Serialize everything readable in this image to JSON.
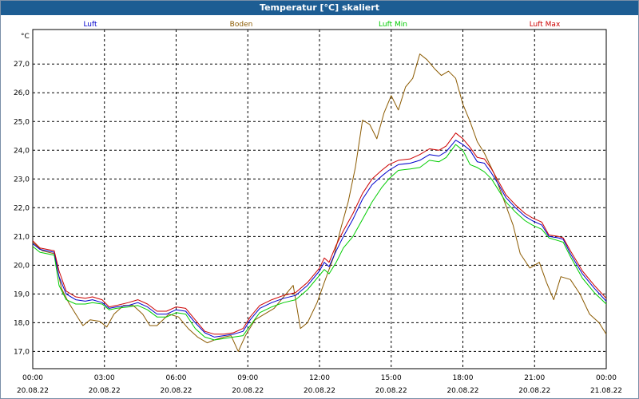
{
  "window": {
    "title": "Temperatur [°C] skaliert"
  },
  "chart_data": {
    "type": "line",
    "title": "Temperatur [°C] skaliert",
    "ylabel": "°C",
    "xlabel": "",
    "ylim": [
      16.4,
      28.2
    ],
    "y_ticks": [
      17.0,
      18.0,
      19.0,
      20.0,
      21.0,
      22.0,
      23.0,
      24.0,
      25.0,
      26.0,
      27.0
    ],
    "y_tick_labels": [
      "17,0",
      "18,0",
      "19,0",
      "20,0",
      "21,0",
      "22,0",
      "23,0",
      "24,0",
      "25,0",
      "26,0",
      "27,0"
    ],
    "xlim": [
      0,
      24
    ],
    "x_ticks": [
      {
        "hour": 0,
        "time": "00:00",
        "date": "20.08.22"
      },
      {
        "hour": 3,
        "time": "03:00",
        "date": "20.08.22"
      },
      {
        "hour": 6,
        "time": "06:00",
        "date": "20.08.22"
      },
      {
        "hour": 9,
        "time": "09:00",
        "date": "20.08.22"
      },
      {
        "hour": 12,
        "time": "12:00",
        "date": "20.08.22"
      },
      {
        "hour": 15,
        "time": "15:00",
        "date": "20.08.22"
      },
      {
        "hour": 18,
        "time": "18:00",
        "date": "20.08.22"
      },
      {
        "hour": 21,
        "time": "21:00",
        "date": "20.08.22"
      },
      {
        "hour": 24,
        "time": "00:00",
        "date": "21.08.22"
      }
    ],
    "grid": true,
    "series": [
      {
        "name": "Luft",
        "color": "#0000cc",
        "points": [
          [
            0,
            20.75
          ],
          [
            0.3,
            20.55
          ],
          [
            0.9,
            20.45
          ],
          [
            1.1,
            19.6
          ],
          [
            1.4,
            19.0
          ],
          [
            1.8,
            18.8
          ],
          [
            2.2,
            18.75
          ],
          [
            2.5,
            18.8
          ],
          [
            2.9,
            18.7
          ],
          [
            3.2,
            18.5
          ],
          [
            3.5,
            18.55
          ],
          [
            4.0,
            18.6
          ],
          [
            4.4,
            18.7
          ],
          [
            4.8,
            18.55
          ],
          [
            5.2,
            18.3
          ],
          [
            5.6,
            18.3
          ],
          [
            6.0,
            18.45
          ],
          [
            6.4,
            18.4
          ],
          [
            6.8,
            18.0
          ],
          [
            7.2,
            17.65
          ],
          [
            7.6,
            17.5
          ],
          [
            8.0,
            17.55
          ],
          [
            8.4,
            17.6
          ],
          [
            8.8,
            17.7
          ],
          [
            9.1,
            18.1
          ],
          [
            9.5,
            18.5
          ],
          [
            10.0,
            18.7
          ],
          [
            10.5,
            18.85
          ],
          [
            11.0,
            18.95
          ],
          [
            11.5,
            19.3
          ],
          [
            12.0,
            19.8
          ],
          [
            12.2,
            20.1
          ],
          [
            12.4,
            19.95
          ],
          [
            12.7,
            20.5
          ],
          [
            13.0,
            21.0
          ],
          [
            13.4,
            21.6
          ],
          [
            13.8,
            22.3
          ],
          [
            14.2,
            22.8
          ],
          [
            14.6,
            23.1
          ],
          [
            14.9,
            23.3
          ],
          [
            15.3,
            23.5
          ],
          [
            15.8,
            23.55
          ],
          [
            16.2,
            23.65
          ],
          [
            16.6,
            23.85
          ],
          [
            17.0,
            23.8
          ],
          [
            17.3,
            23.95
          ],
          [
            17.7,
            24.35
          ],
          [
            18.0,
            24.2
          ],
          [
            18.3,
            24.0
          ],
          [
            18.6,
            23.6
          ],
          [
            18.9,
            23.55
          ],
          [
            19.2,
            23.2
          ],
          [
            19.5,
            22.8
          ],
          [
            19.8,
            22.35
          ],
          [
            20.2,
            22.0
          ],
          [
            20.6,
            21.7
          ],
          [
            20.9,
            21.55
          ],
          [
            21.3,
            21.4
          ],
          [
            21.6,
            21.0
          ],
          [
            22.0,
            20.95
          ],
          [
            22.2,
            20.9
          ],
          [
            22.5,
            20.4
          ],
          [
            23.0,
            19.7
          ],
          [
            23.5,
            19.2
          ],
          [
            24.0,
            18.75
          ]
        ]
      },
      {
        "name": "Boden",
        "color": "#8b5a00",
        "points": [
          [
            0,
            20.8
          ],
          [
            0.4,
            20.5
          ],
          [
            0.9,
            20.4
          ],
          [
            1.2,
            19.2
          ],
          [
            1.5,
            18.7
          ],
          [
            1.8,
            18.3
          ],
          [
            2.1,
            17.9
          ],
          [
            2.4,
            18.1
          ],
          [
            2.8,
            18.05
          ],
          [
            3.1,
            17.85
          ],
          [
            3.4,
            18.3
          ],
          [
            3.8,
            18.6
          ],
          [
            4.2,
            18.6
          ],
          [
            4.6,
            18.3
          ],
          [
            4.9,
            17.9
          ],
          [
            5.2,
            17.9
          ],
          [
            5.7,
            18.3
          ],
          [
            6.1,
            18.2
          ],
          [
            6.5,
            17.8
          ],
          [
            6.9,
            17.5
          ],
          [
            7.3,
            17.3
          ],
          [
            7.6,
            17.4
          ],
          [
            8.0,
            17.5
          ],
          [
            8.3,
            17.55
          ],
          [
            8.6,
            17.0
          ],
          [
            8.9,
            17.55
          ],
          [
            9.3,
            18.1
          ],
          [
            9.7,
            18.3
          ],
          [
            10.1,
            18.5
          ],
          [
            10.5,
            18.9
          ],
          [
            10.9,
            19.3
          ],
          [
            11.2,
            17.8
          ],
          [
            11.5,
            18.0
          ],
          [
            11.9,
            18.7
          ],
          [
            12.2,
            19.4
          ],
          [
            12.6,
            20.3
          ],
          [
            12.9,
            21.3
          ],
          [
            13.2,
            22.2
          ],
          [
            13.5,
            23.4
          ],
          [
            13.8,
            25.05
          ],
          [
            14.1,
            24.9
          ],
          [
            14.4,
            24.4
          ],
          [
            14.7,
            25.3
          ],
          [
            15.0,
            25.9
          ],
          [
            15.3,
            25.4
          ],
          [
            15.6,
            26.2
          ],
          [
            15.9,
            26.5
          ],
          [
            16.2,
            27.35
          ],
          [
            16.5,
            27.15
          ],
          [
            16.8,
            26.85
          ],
          [
            17.1,
            26.6
          ],
          [
            17.4,
            26.75
          ],
          [
            17.7,
            26.5
          ],
          [
            18.0,
            25.6
          ],
          [
            18.3,
            25.0
          ],
          [
            18.6,
            24.3
          ],
          [
            18.9,
            23.9
          ],
          [
            19.3,
            23.2
          ],
          [
            19.7,
            22.3
          ],
          [
            20.1,
            21.4
          ],
          [
            20.4,
            20.4
          ],
          [
            20.8,
            19.9
          ],
          [
            21.2,
            20.1
          ],
          [
            21.5,
            19.4
          ],
          [
            21.8,
            18.8
          ],
          [
            22.1,
            19.6
          ],
          [
            22.5,
            19.5
          ],
          [
            22.9,
            19.0
          ],
          [
            23.3,
            18.3
          ],
          [
            23.7,
            18.0
          ],
          [
            24.0,
            17.6
          ]
        ]
      },
      {
        "name": "Luft Min",
        "color": "#00cc00",
        "points": [
          [
            0,
            20.65
          ],
          [
            0.3,
            20.45
          ],
          [
            0.9,
            20.35
          ],
          [
            1.1,
            19.3
          ],
          [
            1.4,
            18.8
          ],
          [
            1.8,
            18.65
          ],
          [
            2.2,
            18.65
          ],
          [
            2.5,
            18.7
          ],
          [
            2.9,
            18.65
          ],
          [
            3.2,
            18.45
          ],
          [
            3.5,
            18.5
          ],
          [
            4.0,
            18.55
          ],
          [
            4.4,
            18.6
          ],
          [
            4.8,
            18.45
          ],
          [
            5.2,
            18.2
          ],
          [
            5.6,
            18.2
          ],
          [
            6.0,
            18.35
          ],
          [
            6.4,
            18.3
          ],
          [
            6.8,
            17.8
          ],
          [
            7.2,
            17.5
          ],
          [
            7.6,
            17.4
          ],
          [
            8.0,
            17.45
          ],
          [
            8.4,
            17.5
          ],
          [
            8.8,
            17.55
          ],
          [
            9.1,
            17.9
          ],
          [
            9.5,
            18.35
          ],
          [
            10.0,
            18.55
          ],
          [
            10.5,
            18.7
          ],
          [
            11.0,
            18.8
          ],
          [
            11.5,
            19.15
          ],
          [
            12.0,
            19.65
          ],
          [
            12.2,
            19.85
          ],
          [
            12.4,
            19.7
          ],
          [
            12.7,
            20.1
          ],
          [
            13.0,
            20.6
          ],
          [
            13.4,
            21.0
          ],
          [
            13.8,
            21.6
          ],
          [
            14.2,
            22.2
          ],
          [
            14.6,
            22.7
          ],
          [
            14.9,
            23.0
          ],
          [
            15.3,
            23.3
          ],
          [
            15.8,
            23.35
          ],
          [
            16.2,
            23.4
          ],
          [
            16.6,
            23.65
          ],
          [
            17.0,
            23.6
          ],
          [
            17.3,
            23.75
          ],
          [
            17.7,
            24.2
          ],
          [
            18.0,
            24.0
          ],
          [
            18.3,
            23.5
          ],
          [
            18.6,
            23.4
          ],
          [
            18.9,
            23.25
          ],
          [
            19.2,
            23.0
          ],
          [
            19.5,
            22.6
          ],
          [
            19.8,
            22.2
          ],
          [
            20.2,
            21.85
          ],
          [
            20.6,
            21.55
          ],
          [
            20.9,
            21.4
          ],
          [
            21.3,
            21.25
          ],
          [
            21.6,
            20.95
          ],
          [
            22.0,
            20.85
          ],
          [
            22.2,
            20.8
          ],
          [
            22.5,
            20.3
          ],
          [
            23.0,
            19.55
          ],
          [
            23.5,
            19.05
          ],
          [
            24.0,
            18.65
          ]
        ]
      },
      {
        "name": "Luft Max",
        "color": "#cc0000",
        "points": [
          [
            0,
            20.85
          ],
          [
            0.3,
            20.6
          ],
          [
            0.9,
            20.5
          ],
          [
            1.1,
            19.8
          ],
          [
            1.4,
            19.1
          ],
          [
            1.8,
            18.9
          ],
          [
            2.2,
            18.85
          ],
          [
            2.5,
            18.9
          ],
          [
            2.9,
            18.8
          ],
          [
            3.2,
            18.55
          ],
          [
            3.5,
            18.6
          ],
          [
            4.0,
            18.7
          ],
          [
            4.4,
            18.8
          ],
          [
            4.8,
            18.65
          ],
          [
            5.2,
            18.4
          ],
          [
            5.6,
            18.4
          ],
          [
            6.0,
            18.55
          ],
          [
            6.4,
            18.5
          ],
          [
            6.8,
            18.1
          ],
          [
            7.2,
            17.7
          ],
          [
            7.6,
            17.6
          ],
          [
            8.0,
            17.6
          ],
          [
            8.4,
            17.65
          ],
          [
            8.8,
            17.8
          ],
          [
            9.1,
            18.2
          ],
          [
            9.5,
            18.6
          ],
          [
            10.0,
            18.8
          ],
          [
            10.5,
            18.95
          ],
          [
            11.0,
            19.05
          ],
          [
            11.5,
            19.4
          ],
          [
            12.0,
            19.9
          ],
          [
            12.2,
            20.25
          ],
          [
            12.4,
            20.1
          ],
          [
            12.7,
            20.7
          ],
          [
            13.0,
            21.2
          ],
          [
            13.4,
            21.8
          ],
          [
            13.8,
            22.5
          ],
          [
            14.2,
            23.0
          ],
          [
            14.6,
            23.3
          ],
          [
            14.9,
            23.5
          ],
          [
            15.3,
            23.65
          ],
          [
            15.8,
            23.7
          ],
          [
            16.2,
            23.85
          ],
          [
            16.6,
            24.05
          ],
          [
            17.0,
            24.0
          ],
          [
            17.3,
            24.15
          ],
          [
            17.7,
            24.6
          ],
          [
            18.0,
            24.4
          ],
          [
            18.3,
            24.1
          ],
          [
            18.6,
            23.75
          ],
          [
            18.9,
            23.7
          ],
          [
            19.2,
            23.35
          ],
          [
            19.5,
            22.9
          ],
          [
            19.8,
            22.45
          ],
          [
            20.2,
            22.1
          ],
          [
            20.6,
            21.8
          ],
          [
            20.9,
            21.65
          ],
          [
            21.3,
            21.5
          ],
          [
            21.6,
            21.05
          ],
          [
            22.0,
            21.0
          ],
          [
            22.2,
            20.95
          ],
          [
            22.5,
            20.5
          ],
          [
            23.0,
            19.8
          ],
          [
            23.5,
            19.3
          ],
          [
            24.0,
            18.85
          ]
        ]
      }
    ]
  }
}
